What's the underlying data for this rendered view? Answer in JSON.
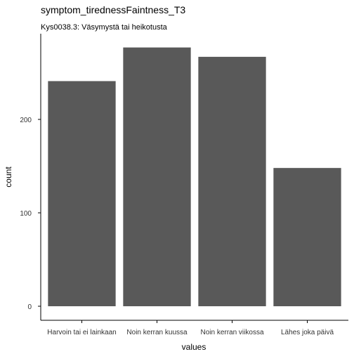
{
  "chart_data": {
    "type": "bar",
    "title": "symptom_tirednessFaintness_T3",
    "subtitle": "Kys0038.3: Väsymystä tai heikotusta",
    "xlabel": "values",
    "ylabel": "count",
    "categories": [
      "Harvoin tai ei lainkaan",
      "Noin kerran kuussa",
      "Noin kerran viikossa",
      "Lähes joka päivä"
    ],
    "values": [
      241,
      277,
      267,
      148
    ],
    "ylim": [
      0,
      293
    ],
    "yticks": [
      0,
      100,
      200
    ],
    "grid": false,
    "bar_color": "#595959"
  }
}
